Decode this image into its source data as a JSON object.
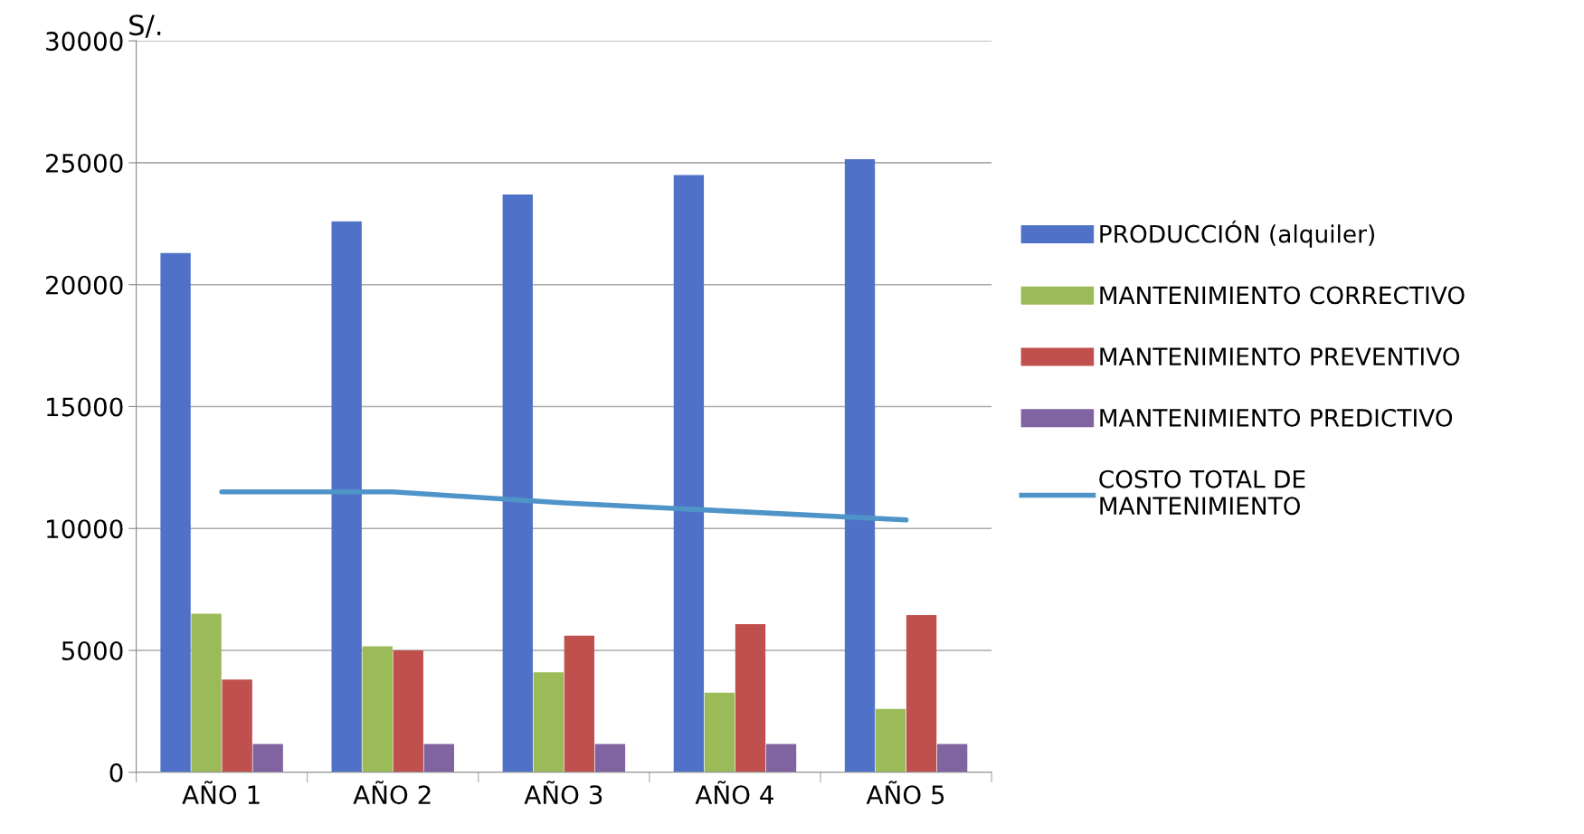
{
  "chart_data": {
    "type": "bar",
    "ylabel": "S/.",
    "categories": [
      "AÑO 1",
      "AÑO 2",
      "AÑO 3",
      "AÑO 4",
      "AÑO 5"
    ],
    "series": [
      {
        "name": "PRODUCCIÓN (alquiler)",
        "color": "#4f72c8",
        "values": [
          21300,
          22600,
          23700,
          24500,
          25150
        ]
      },
      {
        "name": "MANTENIMIENTO CORRECTIVO",
        "color": "#9bbb59",
        "values": [
          6500,
          5170,
          4100,
          3270,
          2600
        ]
      },
      {
        "name": "MANTENIMIENTO PREVENTIVO",
        "color": "#c0504d",
        "values": [
          3800,
          5000,
          5600,
          6080,
          6450
        ]
      },
      {
        "name": "MANTENIMIENTO PREDICTIVO",
        "color": "#8064a2",
        "values": [
          1160,
          1160,
          1160,
          1160,
          1160
        ]
      },
      {
        "name": "COSTO TOTAL DE\nMANTENIMIENTO",
        "color": "#4f94c8",
        "type": "line",
        "values": [
          11500,
          11500,
          11050,
          10700,
          10350
        ]
      }
    ],
    "ylim": [
      0,
      30000
    ],
    "yticks": [
      0,
      5000,
      10000,
      15000,
      20000,
      25000,
      30000
    ],
    "grid": "y",
    "legend": "right"
  }
}
